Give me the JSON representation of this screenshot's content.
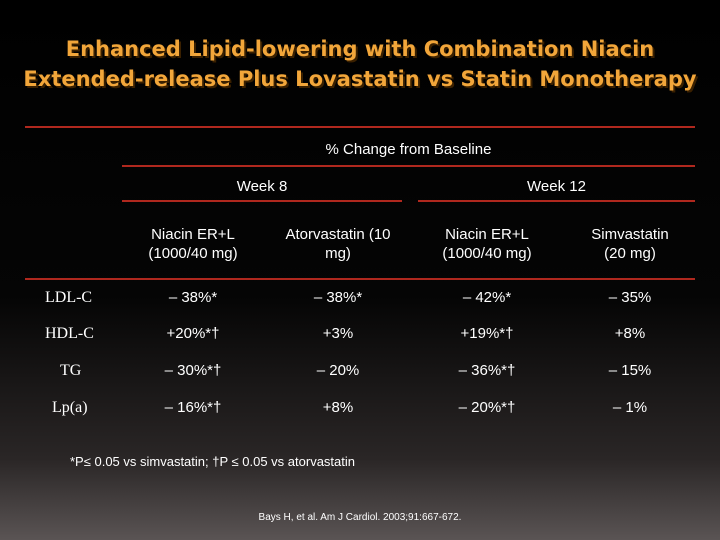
{
  "slide": {
    "title_line1": "Enhanced Lipid-lowering with Combination Niacin",
    "title_line2": "Extended-release Plus Lovastatin vs Statin Monotherapy"
  },
  "table": {
    "super_header": "% Change from Baseline",
    "groups": [
      "Week 8",
      "Week 12"
    ],
    "columns": [
      {
        "line1": "Niacin ER+L",
        "line2": "(1000/40 mg)"
      },
      {
        "line1": "Atorvastatin (10",
        "line2": "mg)"
      },
      {
        "line1": "Niacin ER+L",
        "line2": "(1000/40 mg)"
      },
      {
        "line1": "Simvastatin",
        "line2": "(20 mg)"
      }
    ],
    "rows": [
      {
        "label": "LDL-C",
        "values": [
          "– 38%*",
          "– 38%*",
          "– 42%*",
          "– 35%"
        ]
      },
      {
        "label": "HDL-C",
        "values": [
          "+20%*†",
          "+3%",
          "+19%*†",
          "+8%"
        ]
      },
      {
        "label": "TG",
        "values": [
          "– 30%*†",
          "– 20%",
          "– 36%*†",
          "– 15%"
        ]
      },
      {
        "label": "Lp(a)",
        "values": [
          "– 16%*†",
          "+8%",
          "– 20%*†",
          "– 1%"
        ]
      }
    ]
  },
  "footnote": "*P≤ 0.05 vs simvastatin; †P ≤ 0.05 vs atorvastatin",
  "citation": "Bays H, et al. Am J Cardiol. 2003;91:667-672."
}
